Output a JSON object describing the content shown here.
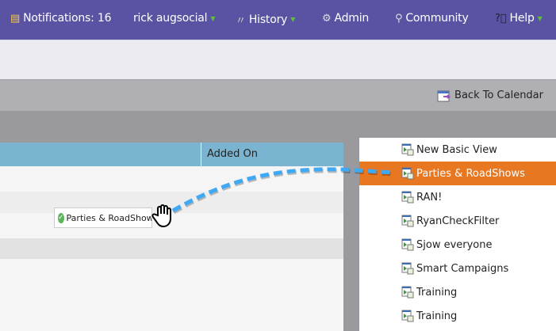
{
  "nav": {
    "notifications": "Notifications: 16",
    "user": "rick augsocial",
    "history": "History",
    "admin": "Admin",
    "community": "Community",
    "help": "Help"
  },
  "toolbar": {
    "back_to_calendar": "Back To Calendar"
  },
  "table": {
    "columns": [
      "",
      "Added On"
    ]
  },
  "drag_chip": {
    "label": "Parties & RoadShows"
  },
  "panel": {
    "items": [
      {
        "label": "New Basic View",
        "selected": false
      },
      {
        "label": "Parties & RoadShows",
        "selected": true
      },
      {
        "label": "RAN!",
        "selected": false
      },
      {
        "label": "RyanCheckFilter",
        "selected": false
      },
      {
        "label": "Sjow everyone",
        "selected": false
      },
      {
        "label": "Smart Campaigns",
        "selected": false
      },
      {
        "label": "Training",
        "selected": false
      },
      {
        "label": "Training",
        "selected": false
      }
    ]
  },
  "colors": {
    "nav": "#5a53a3",
    "header": "#7ab4d0",
    "selected": "#e87722",
    "drag_line": "#3fa9f5"
  }
}
